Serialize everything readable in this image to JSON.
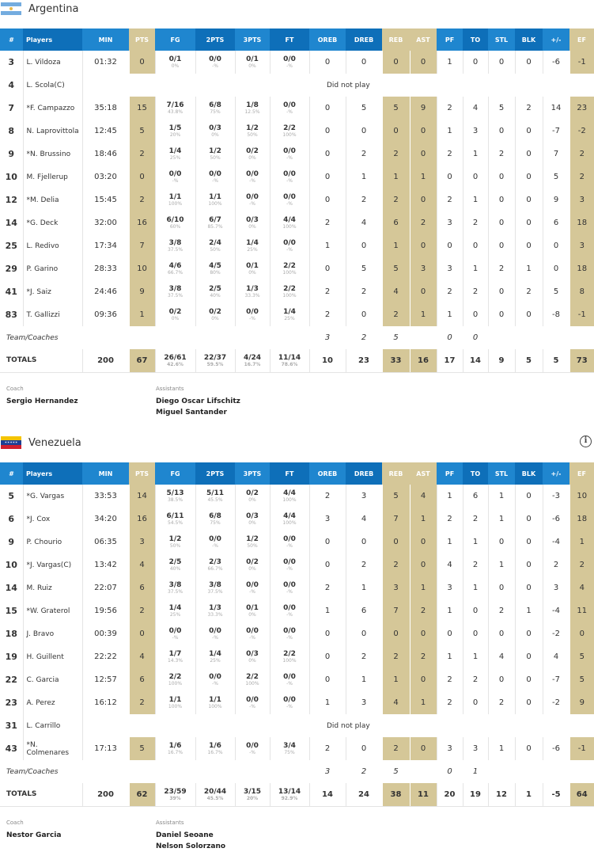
{
  "columns": [
    "#",
    "Players",
    "MIN",
    "PTS",
    "FG",
    "2PTS",
    "3PTS",
    "FT",
    "OREB",
    "DREB",
    "REB",
    "AST",
    "PF",
    "TO",
    "STL",
    "BLK",
    "+/-",
    "EF"
  ],
  "labels": {
    "team_coaches": "Team/Coaches",
    "totals": "TOTALS",
    "did_not_play": "Did not play",
    "coach": "Coach",
    "assistants": "Assistants"
  },
  "colors": {
    "header_blue": "#1f86cf",
    "header_blue_dark": "#0e6fb9",
    "highlight": "#d5c798"
  },
  "teams": [
    {
      "name": "Argentina",
      "flag": "argentina-flag",
      "info_icon": false,
      "players": [
        {
          "num": "3",
          "name": "L. Vildoza",
          "min": "01:32",
          "pts": "0",
          "fg": [
            "0/1",
            "0%"
          ],
          "p2": [
            "0/0",
            "-%"
          ],
          "p3": [
            "0/1",
            "0%"
          ],
          "ft": [
            "0/0",
            "-%"
          ],
          "oreb": "0",
          "dreb": "0",
          "reb": "0",
          "ast": "0",
          "pf": "1",
          "to": "0",
          "stl": "0",
          "blk": "0",
          "pm": "-6",
          "ef": "-1"
        },
        {
          "num": "4",
          "name": "L. Scola(C)",
          "dnp": true
        },
        {
          "num": "7",
          "name": "*F. Campazzo",
          "min": "35:18",
          "pts": "15",
          "fg": [
            "7/16",
            "43.8%"
          ],
          "p2": [
            "6/8",
            "75%"
          ],
          "p3": [
            "1/8",
            "12.5%"
          ],
          "ft": [
            "0/0",
            "-%"
          ],
          "oreb": "0",
          "dreb": "5",
          "reb": "5",
          "ast": "9",
          "pf": "2",
          "to": "4",
          "stl": "5",
          "blk": "2",
          "pm": "14",
          "ef": "23"
        },
        {
          "num": "8",
          "name": "N. Laprovittola",
          "min": "12:45",
          "pts": "5",
          "fg": [
            "1/5",
            "20%"
          ],
          "p2": [
            "0/3",
            "0%"
          ],
          "p3": [
            "1/2",
            "50%"
          ],
          "ft": [
            "2/2",
            "100%"
          ],
          "oreb": "0",
          "dreb": "0",
          "reb": "0",
          "ast": "0",
          "pf": "1",
          "to": "3",
          "stl": "0",
          "blk": "0",
          "pm": "-7",
          "ef": "-2"
        },
        {
          "num": "9",
          "name": "*N. Brussino",
          "min": "18:46",
          "pts": "2",
          "fg": [
            "1/4",
            "25%"
          ],
          "p2": [
            "1/2",
            "50%"
          ],
          "p3": [
            "0/2",
            "0%"
          ],
          "ft": [
            "0/0",
            "-%"
          ],
          "oreb": "0",
          "dreb": "2",
          "reb": "2",
          "ast": "0",
          "pf": "2",
          "to": "1",
          "stl": "2",
          "blk": "0",
          "pm": "7",
          "ef": "2"
        },
        {
          "num": "10",
          "name": "M. Fjellerup",
          "min": "03:20",
          "pts": "0",
          "fg": [
            "0/0",
            "-%"
          ],
          "p2": [
            "0/0",
            "-%"
          ],
          "p3": [
            "0/0",
            "-%"
          ],
          "ft": [
            "0/0",
            "-%"
          ],
          "oreb": "0",
          "dreb": "1",
          "reb": "1",
          "ast": "1",
          "pf": "0",
          "to": "0",
          "stl": "0",
          "blk": "0",
          "pm": "5",
          "ef": "2"
        },
        {
          "num": "12",
          "name": "*M. Delia",
          "min": "15:45",
          "pts": "2",
          "fg": [
            "1/1",
            "100%"
          ],
          "p2": [
            "1/1",
            "100%"
          ],
          "p3": [
            "0/0",
            "-%"
          ],
          "ft": [
            "0/0",
            "-%"
          ],
          "oreb": "0",
          "dreb": "2",
          "reb": "2",
          "ast": "0",
          "pf": "2",
          "to": "1",
          "stl": "0",
          "blk": "0",
          "pm": "9",
          "ef": "3"
        },
        {
          "num": "14",
          "name": "*G. Deck",
          "min": "32:00",
          "pts": "16",
          "fg": [
            "6/10",
            "60%"
          ],
          "p2": [
            "6/7",
            "85.7%"
          ],
          "p3": [
            "0/3",
            "0%"
          ],
          "ft": [
            "4/4",
            "100%"
          ],
          "oreb": "2",
          "dreb": "4",
          "reb": "6",
          "ast": "2",
          "pf": "3",
          "to": "2",
          "stl": "0",
          "blk": "0",
          "pm": "6",
          "ef": "18"
        },
        {
          "num": "25",
          "name": "L. Redivo",
          "min": "17:34",
          "pts": "7",
          "fg": [
            "3/8",
            "37.5%"
          ],
          "p2": [
            "2/4",
            "50%"
          ],
          "p3": [
            "1/4",
            "25%"
          ],
          "ft": [
            "0/0",
            "-%"
          ],
          "oreb": "1",
          "dreb": "0",
          "reb": "1",
          "ast": "0",
          "pf": "0",
          "to": "0",
          "stl": "0",
          "blk": "0",
          "pm": "0",
          "ef": "3"
        },
        {
          "num": "29",
          "name": "P. Garino",
          "min": "28:33",
          "pts": "10",
          "fg": [
            "4/6",
            "66.7%"
          ],
          "p2": [
            "4/5",
            "80%"
          ],
          "p3": [
            "0/1",
            "0%"
          ],
          "ft": [
            "2/2",
            "100%"
          ],
          "oreb": "0",
          "dreb": "5",
          "reb": "5",
          "ast": "3",
          "pf": "3",
          "to": "1",
          "stl": "2",
          "blk": "1",
          "pm": "0",
          "ef": "18"
        },
        {
          "num": "41",
          "name": "*J. Saiz",
          "min": "24:46",
          "pts": "9",
          "fg": [
            "3/8",
            "37.5%"
          ],
          "p2": [
            "2/5",
            "40%"
          ],
          "p3": [
            "1/3",
            "33.3%"
          ],
          "ft": [
            "2/2",
            "100%"
          ],
          "oreb": "2",
          "dreb": "2",
          "reb": "4",
          "ast": "0",
          "pf": "2",
          "to": "2",
          "stl": "0",
          "blk": "2",
          "pm": "5",
          "ef": "8"
        },
        {
          "num": "83",
          "name": "T. Gallizzi",
          "min": "09:36",
          "pts": "1",
          "fg": [
            "0/2",
            "0%"
          ],
          "p2": [
            "0/2",
            "0%"
          ],
          "p3": [
            "0/0",
            "-%"
          ],
          "ft": [
            "1/4",
            "25%"
          ],
          "oreb": "2",
          "dreb": "0",
          "reb": "2",
          "ast": "1",
          "pf": "1",
          "to": "0",
          "stl": "0",
          "blk": "0",
          "pm": "-8",
          "ef": "-1"
        }
      ],
      "team_row": {
        "oreb": "3",
        "dreb": "2",
        "reb": "5",
        "pf": "0",
        "to": "0"
      },
      "totals": {
        "min": "200",
        "pts": "67",
        "fg": [
          "26/61",
          "42.6%"
        ],
        "p2": [
          "22/37",
          "59.5%"
        ],
        "p3": [
          "4/24",
          "16.7%"
        ],
        "ft": [
          "11/14",
          "78.6%"
        ],
        "oreb": "10",
        "dreb": "23",
        "reb": "33",
        "ast": "16",
        "pf": "17",
        "to": "14",
        "stl": "9",
        "blk": "5",
        "pm": "5",
        "ef": "73"
      },
      "coach": "Sergio Hernandez",
      "assistants": [
        "Diego Oscar Lifschitz",
        "Miguel Santander"
      ]
    },
    {
      "name": "Venezuela",
      "flag": "venezuela-flag",
      "info_icon": true,
      "players": [
        {
          "num": "5",
          "name": "*G. Vargas",
          "min": "33:53",
          "pts": "14",
          "fg": [
            "5/13",
            "38.5%"
          ],
          "p2": [
            "5/11",
            "45.5%"
          ],
          "p3": [
            "0/2",
            "0%"
          ],
          "ft": [
            "4/4",
            "100%"
          ],
          "oreb": "2",
          "dreb": "3",
          "reb": "5",
          "ast": "4",
          "pf": "1",
          "to": "6",
          "stl": "1",
          "blk": "0",
          "pm": "-3",
          "ef": "10"
        },
        {
          "num": "6",
          "name": "*J. Cox",
          "min": "34:20",
          "pts": "16",
          "fg": [
            "6/11",
            "54.5%"
          ],
          "p2": [
            "6/8",
            "75%"
          ],
          "p3": [
            "0/3",
            "0%"
          ],
          "ft": [
            "4/4",
            "100%"
          ],
          "oreb": "3",
          "dreb": "4",
          "reb": "7",
          "ast": "1",
          "pf": "2",
          "to": "2",
          "stl": "1",
          "blk": "0",
          "pm": "-6",
          "ef": "18"
        },
        {
          "num": "9",
          "name": "P. Chourio",
          "min": "06:35",
          "pts": "3",
          "fg": [
            "1/2",
            "50%"
          ],
          "p2": [
            "0/0",
            "-%"
          ],
          "p3": [
            "1/2",
            "50%"
          ],
          "ft": [
            "0/0",
            "-%"
          ],
          "oreb": "0",
          "dreb": "0",
          "reb": "0",
          "ast": "0",
          "pf": "1",
          "to": "1",
          "stl": "0",
          "blk": "0",
          "pm": "-4",
          "ef": "1"
        },
        {
          "num": "10",
          "name": "*J. Vargas(C)",
          "min": "13:42",
          "pts": "4",
          "fg": [
            "2/5",
            "40%"
          ],
          "p2": [
            "2/3",
            "66.7%"
          ],
          "p3": [
            "0/2",
            "0%"
          ],
          "ft": [
            "0/0",
            "-%"
          ],
          "oreb": "0",
          "dreb": "2",
          "reb": "2",
          "ast": "0",
          "pf": "4",
          "to": "2",
          "stl": "1",
          "blk": "0",
          "pm": "2",
          "ef": "2"
        },
        {
          "num": "14",
          "name": "M. Ruiz",
          "min": "22:07",
          "pts": "6",
          "fg": [
            "3/8",
            "37.5%"
          ],
          "p2": [
            "3/8",
            "37.5%"
          ],
          "p3": [
            "0/0",
            "-%"
          ],
          "ft": [
            "0/0",
            "-%"
          ],
          "oreb": "2",
          "dreb": "1",
          "reb": "3",
          "ast": "1",
          "pf": "3",
          "to": "1",
          "stl": "0",
          "blk": "0",
          "pm": "3",
          "ef": "4"
        },
        {
          "num": "15",
          "name": "*W. Graterol",
          "min": "19:56",
          "pts": "2",
          "fg": [
            "1/4",
            "25%"
          ],
          "p2": [
            "1/3",
            "33.3%"
          ],
          "p3": [
            "0/1",
            "0%"
          ],
          "ft": [
            "0/0",
            "-%"
          ],
          "oreb": "1",
          "dreb": "6",
          "reb": "7",
          "ast": "2",
          "pf": "1",
          "to": "0",
          "stl": "2",
          "blk": "1",
          "pm": "-4",
          "ef": "11"
        },
        {
          "num": "18",
          "name": "J. Bravo",
          "min": "00:39",
          "pts": "0",
          "fg": [
            "0/0",
            "-%"
          ],
          "p2": [
            "0/0",
            "-%"
          ],
          "p3": [
            "0/0",
            "-%"
          ],
          "ft": [
            "0/0",
            "-%"
          ],
          "oreb": "0",
          "dreb": "0",
          "reb": "0",
          "ast": "0",
          "pf": "0",
          "to": "0",
          "stl": "0",
          "blk": "0",
          "pm": "-2",
          "ef": "0"
        },
        {
          "num": "19",
          "name": "H. Guillent",
          "min": "22:22",
          "pts": "4",
          "fg": [
            "1/7",
            "14.3%"
          ],
          "p2": [
            "1/4",
            "25%"
          ],
          "p3": [
            "0/3",
            "0%"
          ],
          "ft": [
            "2/2",
            "100%"
          ],
          "oreb": "0",
          "dreb": "2",
          "reb": "2",
          "ast": "2",
          "pf": "1",
          "to": "1",
          "stl": "4",
          "blk": "0",
          "pm": "4",
          "ef": "5"
        },
        {
          "num": "22",
          "name": "C. Garcia",
          "min": "12:57",
          "pts": "6",
          "fg": [
            "2/2",
            "100%"
          ],
          "p2": [
            "0/0",
            "-%"
          ],
          "p3": [
            "2/2",
            "100%"
          ],
          "ft": [
            "0/0",
            "-%"
          ],
          "oreb": "0",
          "dreb": "1",
          "reb": "1",
          "ast": "0",
          "pf": "2",
          "to": "2",
          "stl": "0",
          "blk": "0",
          "pm": "-7",
          "ef": "5"
        },
        {
          "num": "23",
          "name": "A. Perez",
          "min": "16:12",
          "pts": "2",
          "fg": [
            "1/1",
            "100%"
          ],
          "p2": [
            "1/1",
            "100%"
          ],
          "p3": [
            "0/0",
            "-%"
          ],
          "ft": [
            "0/0",
            "-%"
          ],
          "oreb": "1",
          "dreb": "3",
          "reb": "4",
          "ast": "1",
          "pf": "2",
          "to": "0",
          "stl": "2",
          "blk": "0",
          "pm": "-2",
          "ef": "9"
        },
        {
          "num": "31",
          "name": "L. Carrillo",
          "dnp": true
        },
        {
          "num": "43",
          "name": "*N. Colmenares",
          "min": "17:13",
          "pts": "5",
          "fg": [
            "1/6",
            "16.7%"
          ],
          "p2": [
            "1/6",
            "16.7%"
          ],
          "p3": [
            "0/0",
            "-%"
          ],
          "ft": [
            "3/4",
            "75%"
          ],
          "oreb": "2",
          "dreb": "0",
          "reb": "2",
          "ast": "0",
          "pf": "3",
          "to": "3",
          "stl": "1",
          "blk": "0",
          "pm": "-6",
          "ef": "-1"
        }
      ],
      "team_row": {
        "oreb": "3",
        "dreb": "2",
        "reb": "5",
        "pf": "0",
        "to": "1"
      },
      "totals": {
        "min": "200",
        "pts": "62",
        "fg": [
          "23/59",
          "39%"
        ],
        "p2": [
          "20/44",
          "45.5%"
        ],
        "p3": [
          "3/15",
          "20%"
        ],
        "ft": [
          "13/14",
          "92.9%"
        ],
        "oreb": "14",
        "dreb": "24",
        "reb": "38",
        "ast": "11",
        "pf": "20",
        "to": "19",
        "stl": "12",
        "blk": "1",
        "pm": "-5",
        "ef": "64"
      },
      "coach": "Nestor Garcia",
      "assistants": [
        "Daniel Seoane",
        "Nelson Solorzano"
      ]
    }
  ]
}
